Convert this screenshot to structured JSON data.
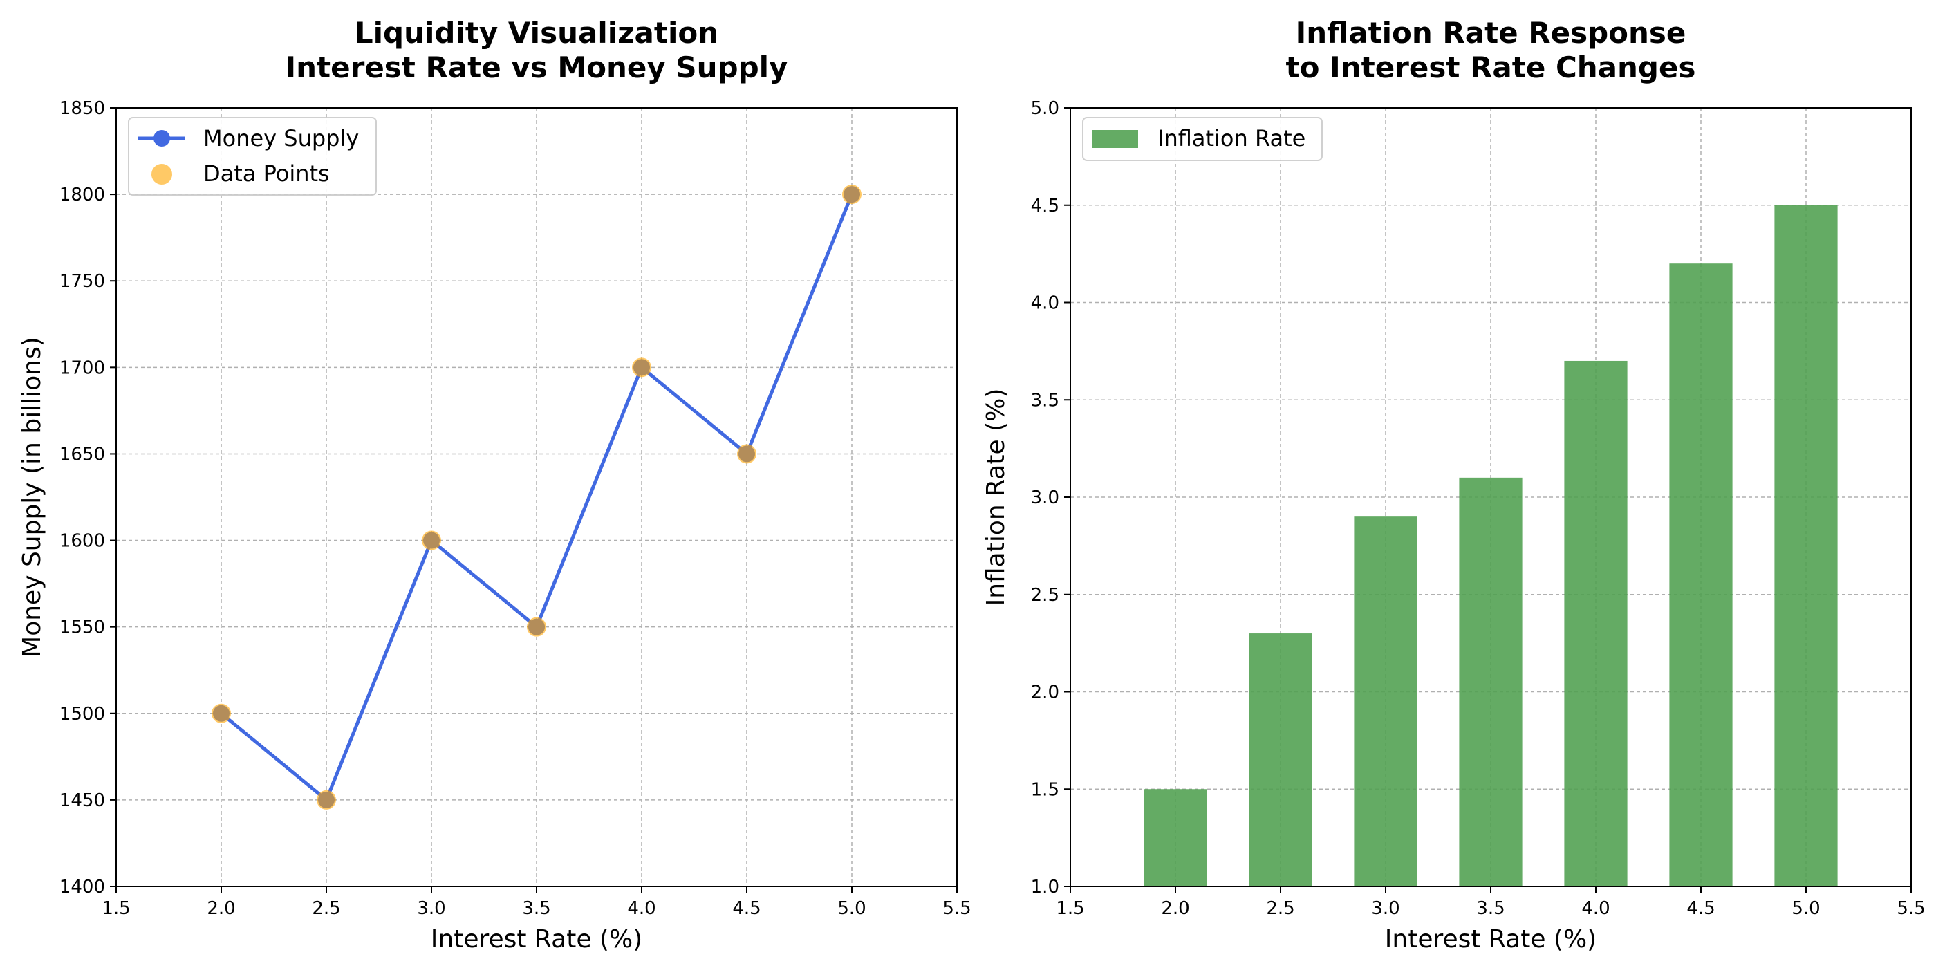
{
  "chart_data": [
    {
      "type": "line",
      "title": [
        "Liquidity Visualization",
        "Interest Rate vs Money Supply"
      ],
      "xlabel": "Interest Rate (%)",
      "ylabel": "Money Supply (in billions)",
      "xlim": [
        1.5,
        5.5
      ],
      "ylim": [
        1400,
        1850
      ],
      "xticks": [
        "1.5",
        "2.0",
        "2.5",
        "3.0",
        "3.5",
        "4.0",
        "4.5",
        "5.0",
        "5.5"
      ],
      "yticks": [
        "1400",
        "1450",
        "1500",
        "1550",
        "1600",
        "1650",
        "1700",
        "1750",
        "1800",
        "1850"
      ],
      "grid": true,
      "legend_position": "upper-left",
      "series": [
        {
          "name": "Money Supply",
          "kind": "line",
          "color": "#4169e1",
          "x": [
            2.0,
            2.5,
            3.0,
            3.5,
            4.0,
            4.5,
            5.0
          ],
          "y": [
            1500,
            1450,
            1600,
            1550,
            1700,
            1650,
            1800
          ]
        },
        {
          "name": "Data Points",
          "kind": "scatter",
          "color": "#ffa500",
          "x": [
            2.0,
            2.5,
            3.0,
            3.5,
            4.0,
            4.5,
            5.0
          ],
          "y": [
            1500,
            1450,
            1600,
            1550,
            1700,
            1650,
            1800
          ]
        }
      ]
    },
    {
      "type": "bar",
      "title": [
        "Inflation Rate Response",
        "to Interest Rate Changes"
      ],
      "xlabel": "Interest Rate (%)",
      "ylabel": "Inflation Rate (%)",
      "xlim": [
        1.5,
        5.5
      ],
      "ylim": [
        1.0,
        5.0
      ],
      "xticks": [
        "1.5",
        "2.0",
        "2.5",
        "3.0",
        "3.5",
        "4.0",
        "4.5",
        "5.0",
        "5.5"
      ],
      "yticks": [
        "1.0",
        "1.5",
        "2.0",
        "2.5",
        "3.0",
        "3.5",
        "4.0",
        "4.5",
        "5.0"
      ],
      "grid": true,
      "legend_position": "upper-left",
      "series": [
        {
          "name": "Inflation Rate",
          "kind": "bar",
          "color": "#4f9f4f",
          "x": [
            2.0,
            2.5,
            3.0,
            3.5,
            4.0,
            4.5,
            5.0
          ],
          "y": [
            1.5,
            2.3,
            2.9,
            3.1,
            3.7,
            4.2,
            4.5
          ]
        }
      ]
    }
  ]
}
